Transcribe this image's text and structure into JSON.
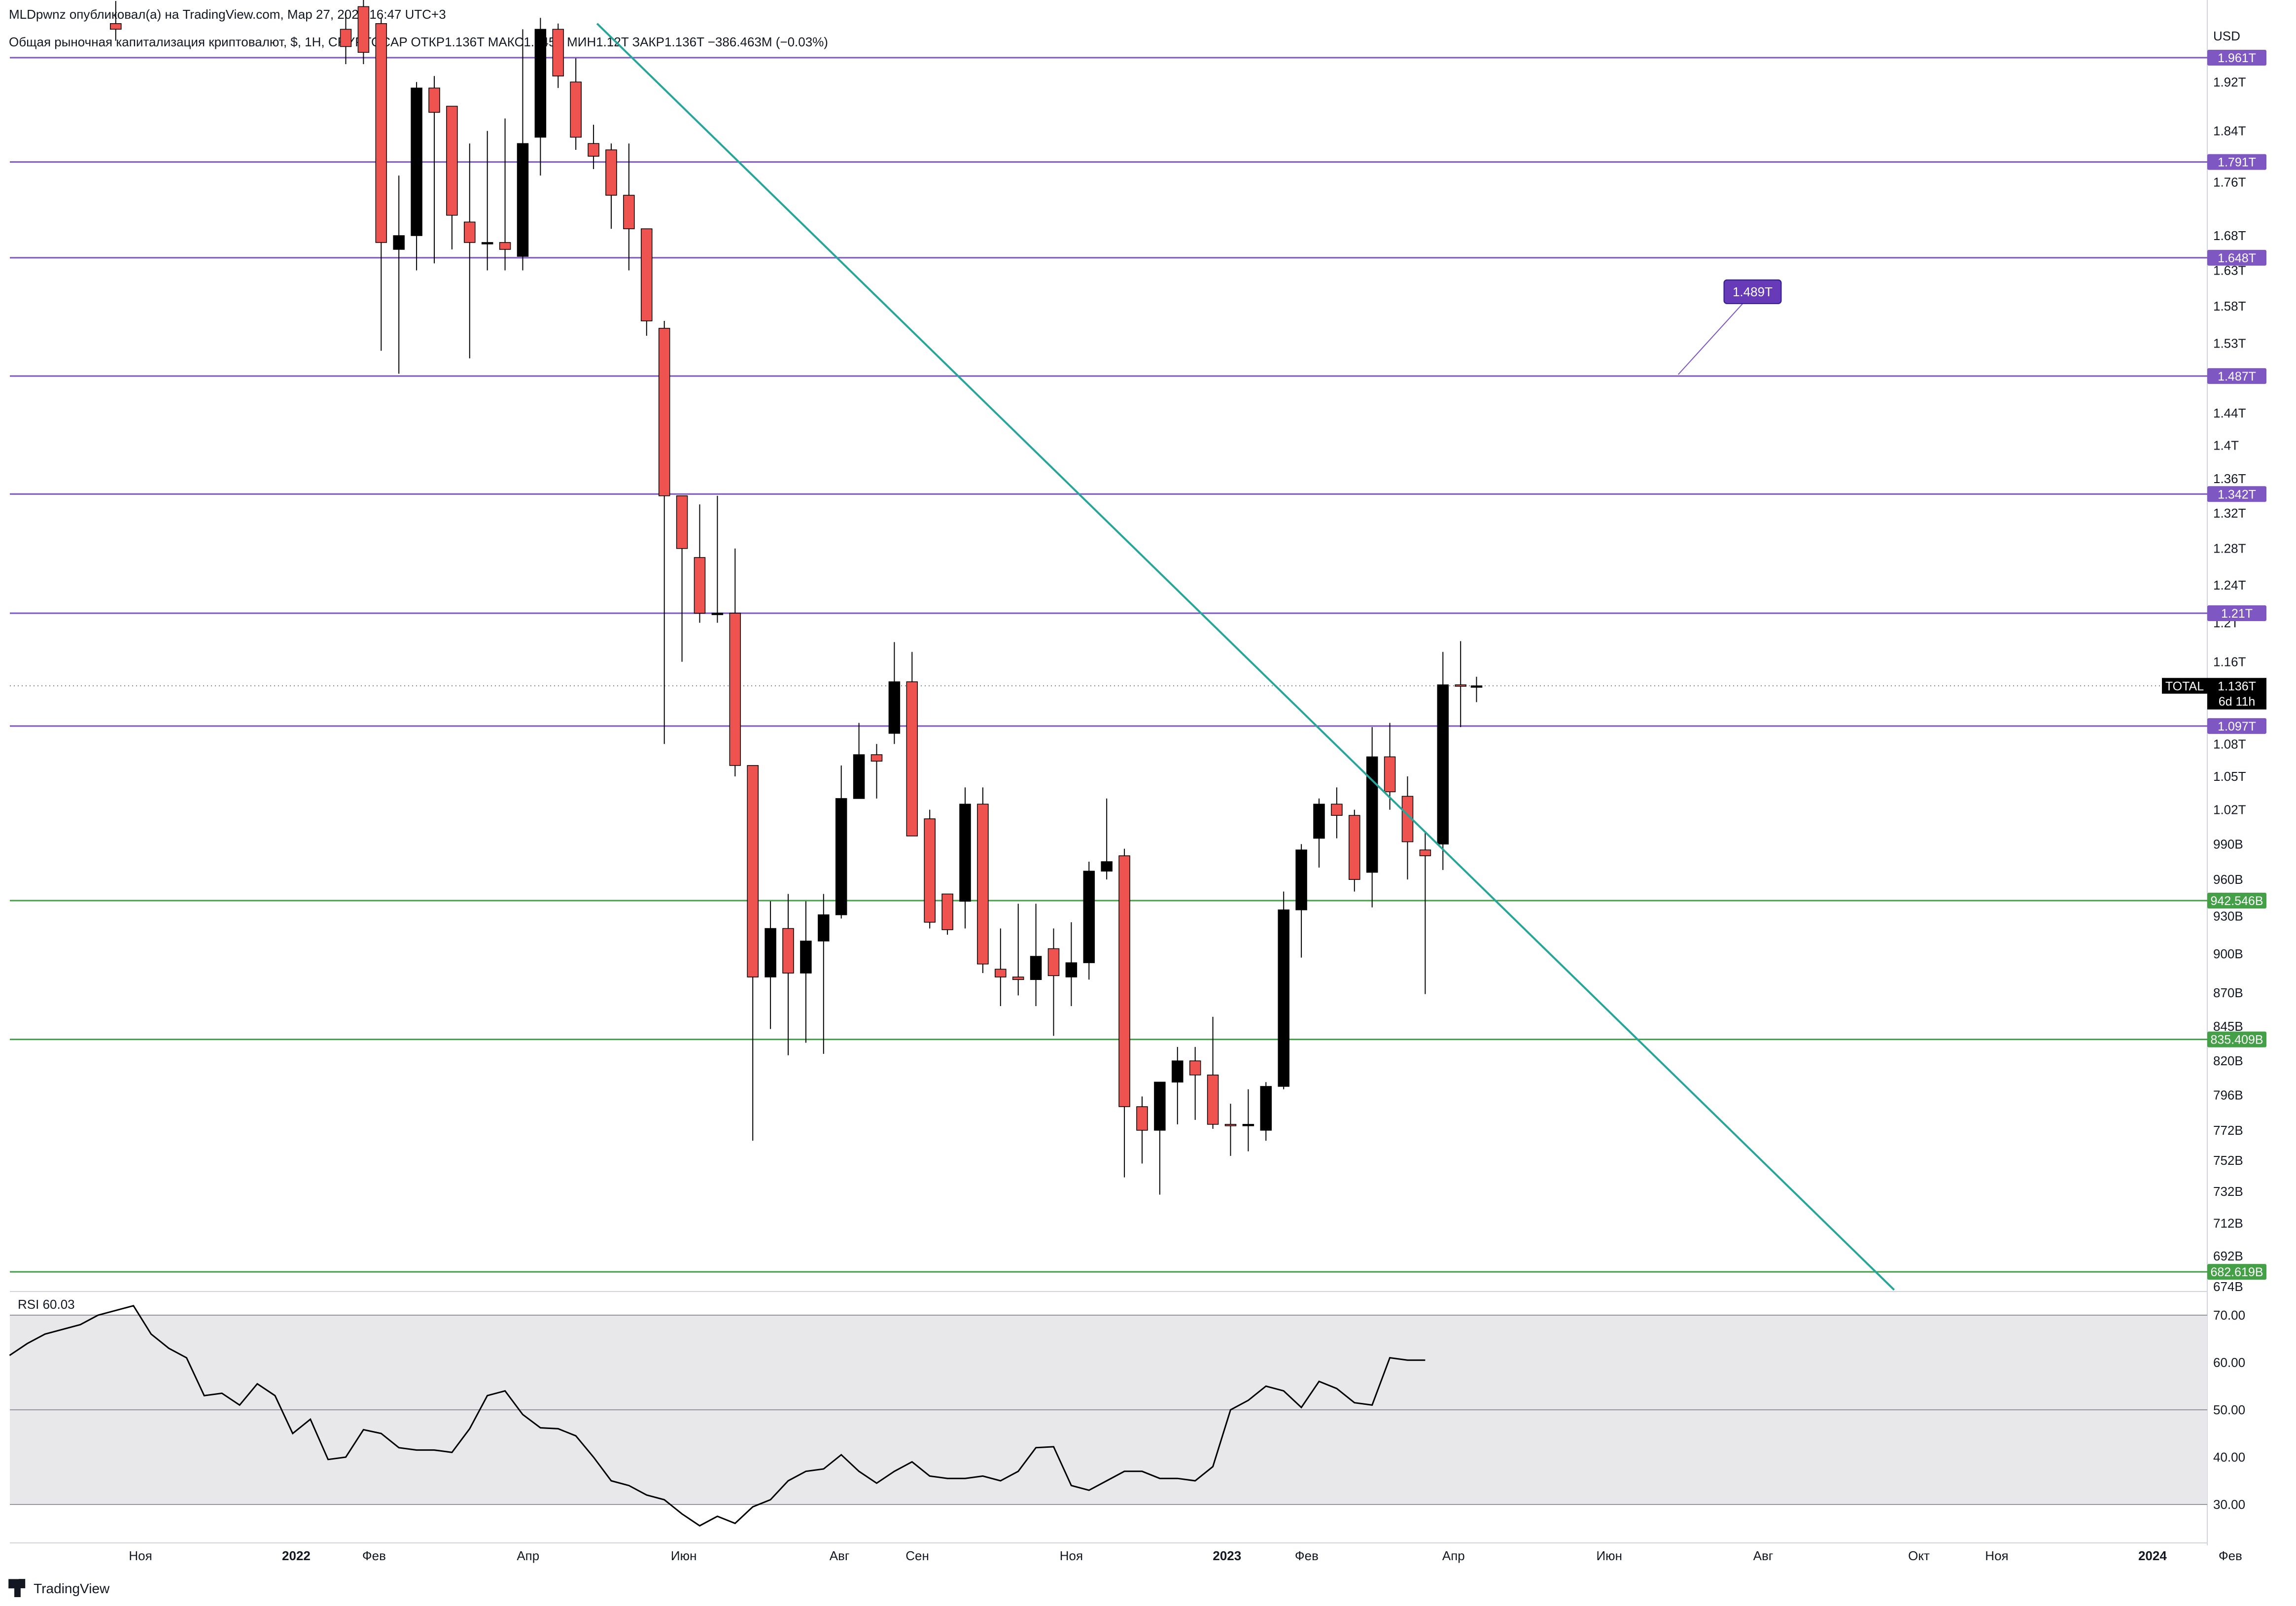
{
  "header": {
    "publisher": "MLDpwnz опубликовал(а) на TradingView.com, Мар 27, 2023 16:47 UTC+3",
    "symbol_line": "Общая рыночная капитализация криптовалют, $, 1Н, CRYPTOCAP  ОТКР1.136T  МАКС1.145T  МИН1.12T  ЗАКР1.136T  −386.463M (−0.03%)"
  },
  "currency": "USD",
  "brand": "TradingView",
  "chart_data": {
    "type": "candlestick",
    "symbol": "TOTAL",
    "last_price_label": "1.136T",
    "countdown": "6d 11h",
    "y_scale": "log",
    "price_axis_ticks": [
      "1.92T",
      "1.84T",
      "1.76T",
      "1.68T",
      "1.63T",
      "1.58T",
      "1.53T",
      "1.44T",
      "1.4T",
      "1.36T",
      "1.32T",
      "1.28T",
      "1.24T",
      "1.2T",
      "1.16T",
      "1.08T",
      "1.05T",
      "1.02T",
      "990B",
      "960B",
      "930B",
      "900B",
      "870B",
      "845B",
      "820B",
      "796B",
      "772B",
      "752B",
      "732B",
      "712B",
      "692B",
      "674B"
    ],
    "time_axis_ticks": [
      {
        "label": "Ноя",
        "week": -6.6,
        "bold": false
      },
      {
        "label": "2022",
        "week": 2.2,
        "bold": true
      },
      {
        "label": "Фев",
        "week": 6.6,
        "bold": false
      },
      {
        "label": "Апр",
        "week": 15.3,
        "bold": false
      },
      {
        "label": "Июн",
        "week": 24.1,
        "bold": false
      },
      {
        "label": "Авг",
        "week": 32.9,
        "bold": false
      },
      {
        "label": "Сен",
        "week": 37.3,
        "bold": false
      },
      {
        "label": "Ноя",
        "week": 46.0,
        "bold": false
      },
      {
        "label": "2023",
        "week": 54.8,
        "bold": true
      },
      {
        "label": "Фев",
        "week": 59.3,
        "bold": false
      },
      {
        "label": "Апр",
        "week": 67.6,
        "bold": false
      },
      {
        "label": "Июн",
        "week": 76.4,
        "bold": false
      },
      {
        "label": "Авг",
        "week": 85.1,
        "bold": false
      },
      {
        "label": "Окт",
        "week": 93.9,
        "bold": false
      },
      {
        "label": "Ноя",
        "week": 98.3,
        "bold": false
      },
      {
        "label": "2024",
        "week": 107.1,
        "bold": true
      },
      {
        "label": "Фев",
        "week": 111.5,
        "bold": false
      }
    ],
    "candles": [
      {
        "w": -8,
        "o": 2.02,
        "h": 2.06,
        "l": 1.99,
        "c": 2.01
      },
      {
        "w": 5,
        "o": 2.01,
        "h": 2.04,
        "l": 1.95,
        "c": 1.98
      },
      {
        "w": 6,
        "o": 2.05,
        "h": 2.07,
        "l": 1.95,
        "c": 1.97
      },
      {
        "w": 7,
        "o": 2.02,
        "h": 2.03,
        "l": 1.52,
        "c": 1.67
      },
      {
        "w": 8,
        "o": 1.66,
        "h": 1.77,
        "l": 1.49,
        "c": 1.68
      },
      {
        "w": 9,
        "o": 1.68,
        "h": 1.92,
        "l": 1.63,
        "c": 1.91
      },
      {
        "w": 10,
        "o": 1.91,
        "h": 1.93,
        "l": 1.64,
        "c": 1.87
      },
      {
        "w": 11,
        "o": 1.88,
        "h": 1.88,
        "l": 1.66,
        "c": 1.71
      },
      {
        "w": 12,
        "o": 1.7,
        "h": 1.82,
        "l": 1.51,
        "c": 1.67
      },
      {
        "w": 13,
        "o": 1.67,
        "h": 1.84,
        "l": 1.63,
        "c": 1.67
      },
      {
        "w": 14,
        "o": 1.67,
        "h": 1.86,
        "l": 1.63,
        "c": 1.66
      },
      {
        "w": 15,
        "o": 1.65,
        "h": 2.01,
        "l": 1.63,
        "c": 1.82
      },
      {
        "w": 16,
        "o": 1.83,
        "h": 2.03,
        "l": 1.77,
        "c": 2.01
      },
      {
        "w": 17,
        "o": 2.01,
        "h": 2.02,
        "l": 1.91,
        "c": 1.93
      },
      {
        "w": 18,
        "o": 1.92,
        "h": 1.96,
        "l": 1.81,
        "c": 1.83
      },
      {
        "w": 19,
        "o": 1.82,
        "h": 1.85,
        "l": 1.78,
        "c": 1.8
      },
      {
        "w": 20,
        "o": 1.81,
        "h": 1.82,
        "l": 1.69,
        "c": 1.74
      },
      {
        "w": 21,
        "o": 1.74,
        "h": 1.82,
        "l": 1.63,
        "c": 1.69
      },
      {
        "w": 22,
        "o": 1.69,
        "h": 1.69,
        "l": 1.54,
        "c": 1.56
      },
      {
        "w": 23,
        "o": 1.55,
        "h": 1.56,
        "l": 1.08,
        "c": 1.34
      },
      {
        "w": 24,
        "o": 1.34,
        "h": 1.34,
        "l": 1.16,
        "c": 1.28
      },
      {
        "w": 25,
        "o": 1.27,
        "h": 1.33,
        "l": 1.2,
        "c": 1.21
      },
      {
        "w": 26,
        "o": 1.21,
        "h": 1.34,
        "l": 1.2,
        "c": 1.21
      },
      {
        "w": 27,
        "o": 1.21,
        "h": 1.28,
        "l": 1.05,
        "c": 1.06
      },
      {
        "w": 28,
        "o": 1.06,
        "h": 1.05,
        "l": 0.765,
        "c": 0.882
      },
      {
        "w": 29,
        "o": 0.882,
        "h": 0.942,
        "l": 0.843,
        "c": 0.92
      },
      {
        "w": 30,
        "o": 0.92,
        "h": 0.948,
        "l": 0.824,
        "c": 0.885
      },
      {
        "w": 31,
        "o": 0.885,
        "h": 0.942,
        "l": 0.833,
        "c": 0.91
      },
      {
        "w": 32,
        "o": 0.91,
        "h": 0.948,
        "l": 0.825,
        "c": 0.931
      },
      {
        "w": 33,
        "o": 0.931,
        "h": 1.06,
        "l": 0.928,
        "c": 1.03
      },
      {
        "w": 34,
        "o": 1.03,
        "h": 1.1,
        "l": 1.03,
        "c": 1.07
      },
      {
        "w": 35,
        "o": 1.07,
        "h": 1.08,
        "l": 1.03,
        "c": 1.064
      },
      {
        "w": 36,
        "o": 1.09,
        "h": 1.18,
        "l": 1.08,
        "c": 1.14
      },
      {
        "w": 37,
        "o": 1.14,
        "h": 1.17,
        "l": 0.997,
        "c": 0.997
      },
      {
        "w": 38,
        "o": 1.012,
        "h": 1.02,
        "l": 0.92,
        "c": 0.925
      },
      {
        "w": 39,
        "o": 0.948,
        "h": 0.948,
        "l": 0.915,
        "c": 0.919
      },
      {
        "w": 40,
        "o": 0.942,
        "h": 1.04,
        "l": 0.92,
        "c": 1.025
      },
      {
        "w": 41,
        "o": 1.025,
        "h": 1.04,
        "l": 0.885,
        "c": 0.892
      },
      {
        "w": 42,
        "o": 0.888,
        "h": 0.92,
        "l": 0.86,
        "c": 0.882
      },
      {
        "w": 43,
        "o": 0.882,
        "h": 0.94,
        "l": 0.868,
        "c": 0.88
      },
      {
        "w": 44,
        "o": 0.88,
        "h": 0.94,
        "l": 0.86,
        "c": 0.898
      },
      {
        "w": 45,
        "o": 0.904,
        "h": 0.92,
        "l": 0.838,
        "c": 0.883
      },
      {
        "w": 46,
        "o": 0.882,
        "h": 0.925,
        "l": 0.86,
        "c": 0.893
      },
      {
        "w": 47,
        "o": 0.893,
        "h": 0.975,
        "l": 0.88,
        "c": 0.967
      },
      {
        "w": 48,
        "o": 0.967,
        "h": 1.03,
        "l": 0.96,
        "c": 0.975
      },
      {
        "w": 49,
        "o": 0.98,
        "h": 0.986,
        "l": 0.741,
        "c": 0.788
      },
      {
        "w": 50,
        "o": 0.788,
        "h": 0.795,
        "l": 0.75,
        "c": 0.772
      },
      {
        "w": 51,
        "o": 0.772,
        "h": 0.805,
        "l": 0.73,
        "c": 0.805
      },
      {
        "w": 52,
        "o": 0.805,
        "h": 0.83,
        "l": 0.776,
        "c": 0.82
      },
      {
        "w": 53,
        "o": 0.82,
        "h": 0.83,
        "l": 0.779,
        "c": 0.81
      },
      {
        "w": 54,
        "o": 0.81,
        "h": 0.852,
        "l": 0.773,
        "c": 0.776
      },
      {
        "w": 55,
        "o": 0.776,
        "h": 0.79,
        "l": 0.755,
        "c": 0.775
      },
      {
        "w": 56,
        "o": 0.775,
        "h": 0.8,
        "l": 0.758,
        "c": 0.776
      },
      {
        "w": 57,
        "o": 0.772,
        "h": 0.805,
        "l": 0.765,
        "c": 0.802
      },
      {
        "w": 58,
        "o": 0.802,
        "h": 0.95,
        "l": 0.8,
        "c": 0.935
      },
      {
        "w": 59,
        "o": 0.935,
        "h": 0.99,
        "l": 0.897,
        "c": 0.985
      },
      {
        "w": 60,
        "o": 0.995,
        "h": 1.03,
        "l": 0.97,
        "c": 1.025
      },
      {
        "w": 61,
        "o": 1.025,
        "h": 1.04,
        "l": 0.995,
        "c": 1.015
      },
      {
        "w": 62,
        "o": 1.015,
        "h": 1.02,
        "l": 0.95,
        "c": 0.96
      },
      {
        "w": 63,
        "o": 0.966,
        "h": 1.096,
        "l": 0.937,
        "c": 1.068
      },
      {
        "w": 64,
        "o": 1.068,
        "h": 1.1,
        "l": 1.02,
        "c": 1.036
      },
      {
        "w": 65,
        "o": 1.032,
        "h": 1.05,
        "l": 0.96,
        "c": 0.992
      },
      {
        "w": 66,
        "o": 0.985,
        "h": 1.0,
        "l": 0.869,
        "c": 0.98
      },
      {
        "w": 67,
        "o": 0.99,
        "h": 1.17,
        "l": 0.968,
        "c": 1.137
      },
      {
        "w": 68,
        "o": 1.137,
        "h": 1.181,
        "l": 1.096,
        "c": 1.136
      },
      {
        "w": 68.9,
        "o": 1.136,
        "h": 1.145,
        "l": 1.12,
        "c": 1.136
      }
    ],
    "horizontal_levels": [
      {
        "value": 1.961,
        "label": "1.961T",
        "color": "#7e57c2"
      },
      {
        "value": 1.791,
        "label": "1.791T",
        "color": "#7e57c2"
      },
      {
        "value": 1.648,
        "label": "1.648T",
        "color": "#7e57c2"
      },
      {
        "value": 1.487,
        "label": "1.487T",
        "color": "#7e57c2"
      },
      {
        "value": 1.342,
        "label": "1.342T",
        "color": "#7e57c2"
      },
      {
        "value": 1.21,
        "label": "1.21T",
        "color": "#7e57c2"
      },
      {
        "value": 1.097,
        "label": "1.097T",
        "color": "#7e57c2"
      },
      {
        "value": 0.942546,
        "label": "942.546B",
        "color": "#43a047"
      },
      {
        "value": 0.835409,
        "label": "835.409B",
        "color": "#43a047"
      },
      {
        "value": 0.682619,
        "label": "682.619B",
        "color": "#43a047"
      }
    ],
    "trendline": {
      "color": "#26a69a",
      "from": {
        "week": 19.2,
        "value": 2.02
      },
      "to": {
        "week": 92.5,
        "value": 0.672
      }
    },
    "callout": {
      "label": "1.489T",
      "week": 84.5,
      "value": 1.6,
      "pointer_week": 80.3,
      "pointer_value": 1.489
    },
    "rsi": {
      "label": "RSI",
      "value_label": "60.03",
      "ticks": [
        "70.00",
        "60.00",
        "50.00",
        "40.00",
        "30.00"
      ],
      "upper_band": 70,
      "lower_band": 30,
      "mid_band": 50,
      "values": [
        61.5,
        64,
        66,
        67,
        68,
        70,
        71,
        72,
        66,
        63,
        61,
        53,
        53.5,
        51,
        55.5,
        53,
        45,
        48,
        39.5,
        40,
        45.8,
        45,
        42,
        41.5,
        41.5,
        41,
        46,
        53,
        54,
        49,
        46.2,
        46,
        44.5,
        40,
        35,
        34,
        32,
        31,
        28,
        25.5,
        27.5,
        26,
        29.5,
        31,
        35,
        37,
        37.5,
        40.5,
        37,
        34.5,
        37,
        39,
        36,
        35.5,
        35.5,
        36,
        35,
        37,
        42,
        42.2,
        34,
        33,
        35,
        37,
        37,
        35.5,
        35.5,
        35,
        38,
        50,
        52,
        55,
        54,
        50.5,
        56,
        54.5,
        51.5,
        51,
        61,
        60.5,
        60.5
      ]
    }
  }
}
